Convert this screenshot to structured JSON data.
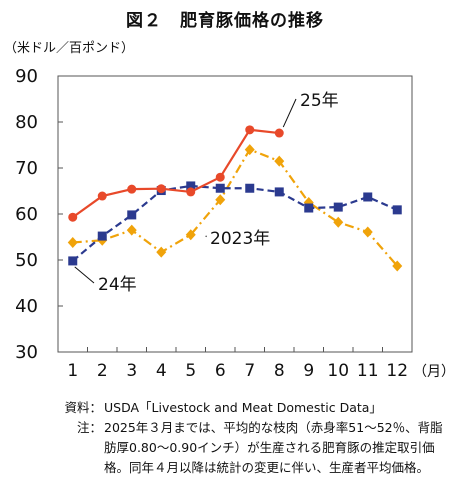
{
  "title": "図２　肥育豚価格の推移",
  "unit_label": "（米ドル／百ポンド）",
  "x_unit_label": "（月）",
  "chart_data": {
    "type": "line",
    "categories": [
      "1",
      "2",
      "3",
      "4",
      "5",
      "6",
      "7",
      "8",
      "9",
      "10",
      "11",
      "12"
    ],
    "ylim": [
      30,
      90
    ],
    "yticks": [
      "30",
      "40",
      "50",
      "60",
      "70",
      "80",
      "90"
    ],
    "grid": false,
    "series": [
      {
        "name": "25年",
        "color": "#e8492a",
        "dash": "solid",
        "marker": "circle",
        "values": [
          59.3,
          63.9,
          65.4,
          65.5,
          64.8,
          68.0,
          78.3,
          77.6,
          null,
          null,
          null,
          null
        ]
      },
      {
        "name": "2023年",
        "color": "#f0a30a",
        "dash": "dashdot",
        "marker": "diamond",
        "values": [
          53.8,
          54.3,
          56.5,
          51.7,
          55.5,
          63.1,
          74.0,
          71.5,
          62.5,
          58.2,
          56.1,
          48.7
        ]
      },
      {
        "name": "24年",
        "color": "#2b3a8f",
        "dash": "dashed",
        "marker": "square",
        "values": [
          49.8,
          55.2,
          59.8,
          65.1,
          66.1,
          65.6,
          65.6,
          64.8,
          61.3,
          61.5,
          63.7,
          60.9
        ]
      }
    ]
  },
  "notes": [
    {
      "label": "資料：",
      "text": "USDA「Livestock and Meat Domestic Data」"
    },
    {
      "label": "注：",
      "text": "2025年３月までは、平均的な枝肉（赤身率51～52％、背脂肪厚0.80～0.90インチ）が生産される肥育豚の推定取引価格。同年４月以降は統計の変更に伴い、生産者平均価格。"
    }
  ]
}
